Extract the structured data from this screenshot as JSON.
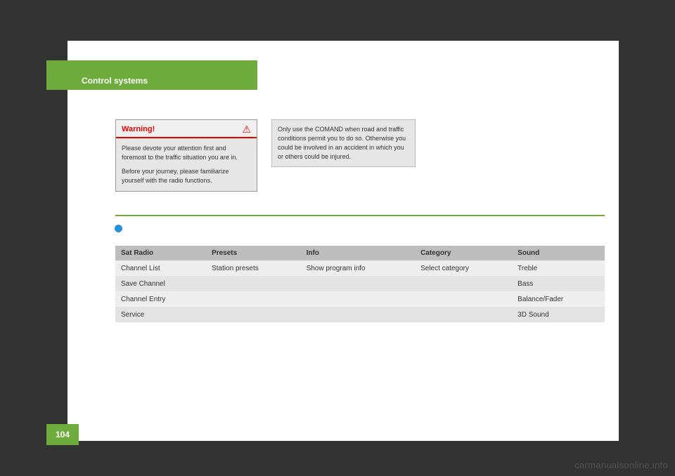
{
  "header": {
    "section_title": "Control systems",
    "page_number": "104"
  },
  "warning_box": {
    "title": "Warning!",
    "p1": "Please devote your attention first and foremost to the traffic situation you are in.",
    "p2": "Before your journey, please familiarize yourself with the radio functions."
  },
  "info_box": {
    "text": "Only use the COMAND when road and traffic conditions permit you to do so. Otherwise you could be involved in an accident in which you or others could be injured."
  },
  "menu_table": {
    "type": "table",
    "header_bg": "#bdbdbd",
    "row_bg_a": "#e3e3e3",
    "row_bg_b": "#eeeeee",
    "columns": [
      "Sat Radio",
      "Presets",
      "Info",
      "Category",
      "Sound"
    ],
    "rows": [
      [
        "Channel List",
        "Station presets",
        "Show program info",
        "Select category",
        "Treble"
      ],
      [
        "Save Channel",
        "",
        "",
        "",
        "Bass"
      ],
      [
        "Channel Entry",
        "",
        "",
        "",
        "Balance/Fader"
      ],
      [
        "Service",
        "",
        "",
        "",
        "3D Sound"
      ]
    ]
  },
  "palette": {
    "accent_green": "#6eac3d",
    "warning_red": "#e60000",
    "page_bg": "#ffffff",
    "outer_bg": "#333333",
    "info_blue": "#2a8fd9"
  },
  "watermark": "carmanualsonline.info"
}
